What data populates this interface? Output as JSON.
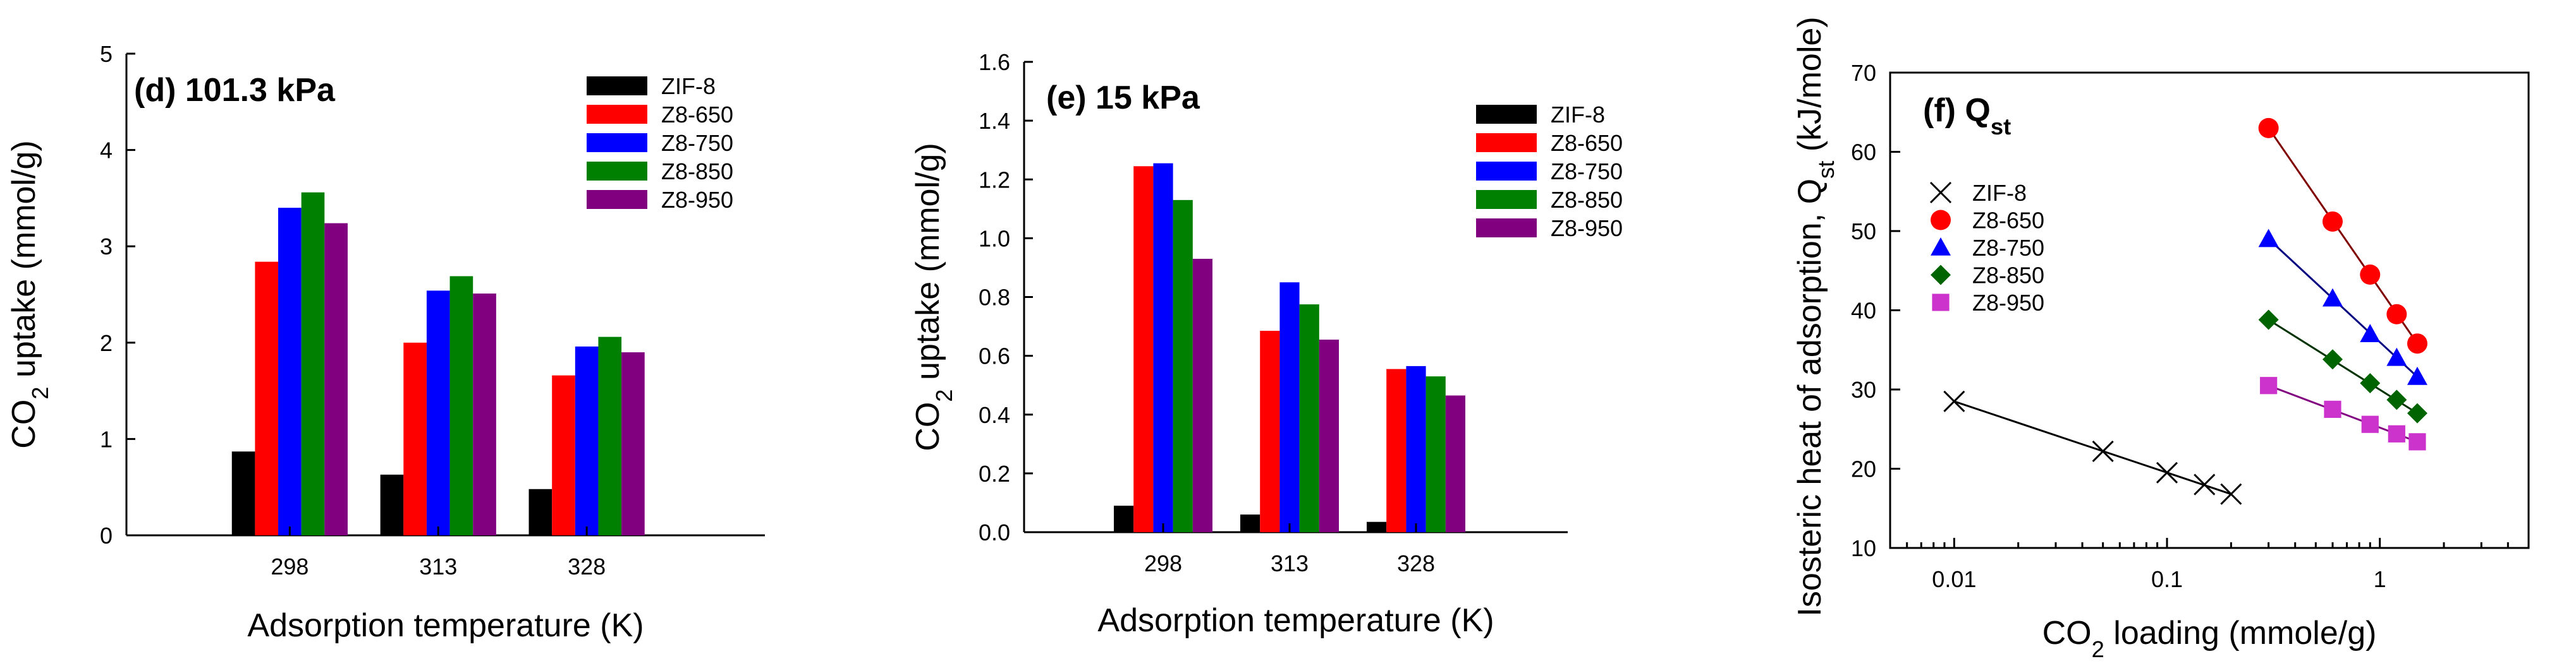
{
  "chart_data": [
    {
      "type": "bar",
      "panel": "d",
      "title_main": "(d) 101.3 kPa",
      "xlabel": "Adsorption temperature (K)",
      "ylabel_pre": "CO",
      "ylabel_sub": "2",
      "ylabel_post": " uptake (mmol/g)",
      "categories": [
        "298",
        "313",
        "328"
      ],
      "ylim": [
        0,
        5
      ],
      "yticks": [
        "0",
        "1",
        "2",
        "3",
        "4",
        "5"
      ],
      "legend_position": "top-right",
      "series": [
        {
          "name": "ZIF-8",
          "color": "#000000",
          "values": [
            0.87,
            0.63,
            0.48
          ]
        },
        {
          "name": "Z8-650",
          "color": "#ff0000",
          "values": [
            2.84,
            2.0,
            1.66
          ]
        },
        {
          "name": "Z8-750",
          "color": "#0000ff",
          "values": [
            3.4,
            2.54,
            1.96
          ]
        },
        {
          "name": "Z8-850",
          "color": "#008000",
          "values": [
            3.56,
            2.69,
            2.06
          ]
        },
        {
          "name": "Z8-950",
          "color": "#800080",
          "values": [
            3.24,
            2.51,
            1.9
          ]
        }
      ]
    },
    {
      "type": "bar",
      "panel": "e",
      "title_main": "(e) 15 kPa",
      "xlabel": "Adsorption temperature (K)",
      "ylabel_pre": "CO",
      "ylabel_sub": "2",
      "ylabel_post": " uptake (mmol/g)",
      "categories": [
        "298",
        "313",
        "328"
      ],
      "ylim": [
        0,
        1.6
      ],
      "yticks": [
        "0.0",
        "0.2",
        "0.4",
        "0.6",
        "0.8",
        "1.0",
        "1.2",
        "1.4",
        "1.6"
      ],
      "legend_position": "top-right",
      "series": [
        {
          "name": "ZIF-8",
          "color": "#000000",
          "values": [
            0.09,
            0.06,
            0.035
          ]
        },
        {
          "name": "Z8-650",
          "color": "#ff0000",
          "values": [
            1.245,
            0.685,
            0.555
          ]
        },
        {
          "name": "Z8-750",
          "color": "#0000ff",
          "values": [
            1.255,
            0.85,
            0.565
          ]
        },
        {
          "name": "Z8-850",
          "color": "#008000",
          "values": [
            1.13,
            0.775,
            0.53
          ]
        },
        {
          "name": "Z8-950",
          "color": "#800080",
          "values": [
            0.93,
            0.655,
            0.465
          ]
        }
      ]
    },
    {
      "type": "scatter",
      "panel": "f",
      "title_main": "(f) Q",
      "title_sub": "st",
      "xlabel_pre": "CO",
      "xlabel_sub": "2",
      "xlabel_post": " loading (mmole/g)",
      "ylabel_pre": "Isosteric heat of adsorption, Q",
      "ylabel_sub": "st",
      "ylabel_post": " (kJ/mole)",
      "xscale": "log",
      "xlim": [
        0.005,
        5
      ],
      "xticks": [
        {
          "value": 0.01,
          "label": "0.01"
        },
        {
          "value": 0.1,
          "label": "0.1"
        },
        {
          "value": 1,
          "label": "1"
        }
      ],
      "ylim": [
        10,
        70
      ],
      "yticks": [
        "10",
        "20",
        "30",
        "40",
        "50",
        "60",
        "70"
      ],
      "legend_position": "top-left",
      "series": [
        {
          "name": "ZIF-8",
          "marker": "x",
          "color": "#000000",
          "line": "#000000",
          "x": [
            0.01,
            0.05,
            0.1,
            0.15,
            0.2
          ],
          "y": [
            28.5,
            22.2,
            19.5,
            18.0,
            16.8
          ]
        },
        {
          "name": "Z8-650",
          "marker": "circle",
          "color": "#ff0000",
          "line": "#800000",
          "x": [
            0.3,
            0.6,
            0.9,
            1.2,
            1.5
          ],
          "y": [
            63.0,
            51.2,
            44.5,
            39.5,
            35.8
          ]
        },
        {
          "name": "Z8-750",
          "marker": "triangle",
          "color": "#0000ff",
          "line": "#000080",
          "x": [
            0.3,
            0.6,
            0.9,
            1.2,
            1.5
          ],
          "y": [
            49.0,
            41.5,
            37.0,
            34.0,
            31.6
          ]
        },
        {
          "name": "Z8-850",
          "marker": "diamond",
          "color": "#006400",
          "line": "#003300",
          "x": [
            0.3,
            0.6,
            0.9,
            1.2,
            1.5
          ],
          "y": [
            38.8,
            33.8,
            30.8,
            28.7,
            27.0
          ]
        },
        {
          "name": "Z8-950",
          "marker": "square",
          "color": "#cc33cc",
          "line": "#800080",
          "x": [
            0.3,
            0.6,
            0.9,
            1.2,
            1.5
          ],
          "y": [
            30.5,
            27.5,
            25.6,
            24.4,
            23.4
          ]
        }
      ]
    }
  ]
}
